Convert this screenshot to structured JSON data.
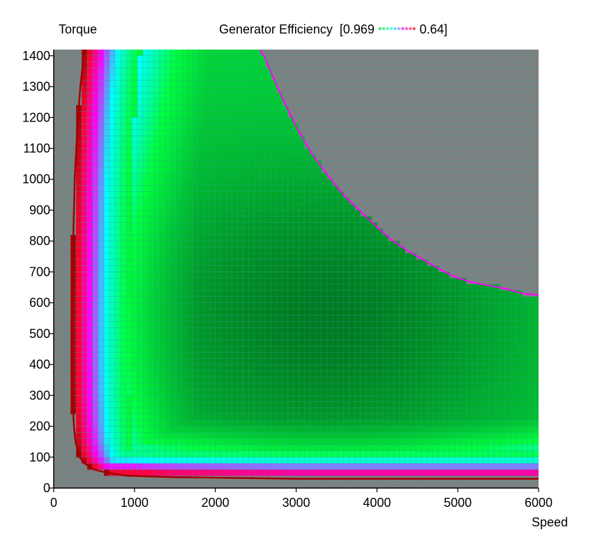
{
  "chart_data": {
    "type": "heatmap",
    "title": "Generator Efficiency",
    "scale_label_open": "[0.969",
    "scale_label_close": "0.64]",
    "scale_max": 0.969,
    "scale_min": 0.64,
    "legend_markers": "**********",
    "ylabel": "Torque",
    "xlabel": "Speed",
    "xlim": [
      0,
      6000
    ],
    "ylim": [
      0,
      1420
    ],
    "x_ticks": [
      0,
      1000,
      2000,
      3000,
      4000,
      5000,
      6000
    ],
    "y_ticks": [
      0,
      100,
      200,
      300,
      400,
      500,
      600,
      700,
      800,
      900,
      1000,
      1100,
      1200,
      1300,
      1400
    ],
    "grid": true,
    "colors": {
      "background": "#808080",
      "grid_line": "#2aa3a3",
      "eff_high": "#007a1e",
      "eff_mid": "#00ff3c",
      "eff_cyan": "#00ffff",
      "eff_magenta": "#ff00ff",
      "eff_low": "#ff0033",
      "edge": "#a00000"
    },
    "legend_colors": [
      "#00c832",
      "#00e650",
      "#00ff8c",
      "#00f0f0",
      "#00d8ff",
      "#8080ff",
      "#d000ff",
      "#ff00c8",
      "#ff0064",
      "#c80000"
    ],
    "max_torque_envelope": {
      "speed": [
        2550,
        2600,
        2700,
        2800,
        3000,
        3200,
        3400,
        3600,
        3800,
        4000,
        4200,
        4400,
        4600,
        4800,
        5000,
        5200,
        5400,
        5600,
        5800,
        6000
      ],
      "torque": [
        1420,
        1400,
        1340,
        1280,
        1170,
        1080,
        1010,
        945,
        895,
        845,
        800,
        765,
        735,
        705,
        680,
        665,
        655,
        645,
        630,
        625
      ]
    },
    "min_torque_envelope": {
      "torque": [
        1420,
        1300,
        1200,
        1100,
        1000,
        900,
        800,
        700,
        600,
        500,
        400,
        300,
        200,
        150,
        100,
        80,
        60,
        50,
        40,
        35,
        30,
        30
      ],
      "speed": [
        380,
        330,
        300,
        280,
        260,
        250,
        240,
        235,
        230,
        225,
        225,
        230,
        250,
        270,
        320,
        380,
        500,
        650,
        900,
        1500,
        3000,
        6000
      ]
    }
  }
}
